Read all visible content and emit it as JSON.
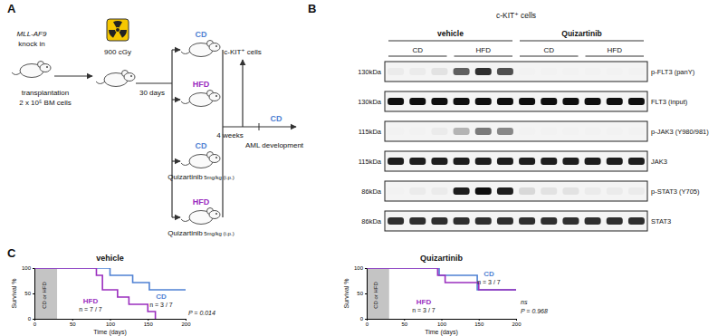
{
  "panel_a": {
    "label": "A",
    "donor": [
      "MLL-AF9",
      "knock in"
    ],
    "transplant": [
      "transplantation",
      "2 x 10⁵ BM cells"
    ],
    "irradiation": "900 cGy",
    "interval": "30 days",
    "groups": [
      {
        "diet": "CD",
        "color": "#4f81d3"
      },
      {
        "diet": "HFD",
        "color": "#9b2fbf"
      },
      {
        "diet": "CD",
        "color": "#4f81d3",
        "treatment": "Quizartinib",
        "dose": "5mg/kg (i.p.)"
      },
      {
        "diet": "HFD",
        "color": "#9b2fbf",
        "treatment": "Quizartinib",
        "dose": "5mg/kg (i.p.)"
      }
    ],
    "duration": "4 weeks",
    "harvest": "c-KIT⁺ cells",
    "post_diet": {
      "diet": "CD",
      "color": "#4f81d3"
    },
    "outcome": "AML development"
  },
  "panel_b": {
    "label": "B",
    "cell_type": "c-KIT⁺ cells",
    "treatments": [
      {
        "name": "vehicle",
        "diets": [
          "CD",
          "HFD"
        ]
      },
      {
        "name": "Quizartinib",
        "diets": [
          "CD",
          "HFD"
        ]
      }
    ],
    "rows": [
      {
        "mw": "130kDa",
        "antibody": "p-FLT3 (panY)",
        "intensities": [
          0.15,
          0.15,
          0.2,
          0.7,
          0.85,
          0.75,
          0.1,
          0.1,
          0.1,
          0.1,
          0.1,
          0.1
        ]
      },
      {
        "mw": "130kDa",
        "antibody": "FLT3 (input)",
        "intensities": [
          0.95,
          0.95,
          0.95,
          0.95,
          0.95,
          0.95,
          0.95,
          0.95,
          0.95,
          0.95,
          0.95,
          0.95
        ]
      },
      {
        "mw": "115kDa",
        "antibody": "p-JAK3 (Y980/981)",
        "intensities": [
          0.1,
          0.1,
          0.15,
          0.4,
          0.6,
          0.55,
          0.1,
          0.1,
          0.1,
          0.1,
          0.1,
          0.1
        ]
      },
      {
        "mw": "115kDa",
        "antibody": "JAK3",
        "intensities": [
          0.9,
          0.9,
          0.9,
          0.9,
          0.9,
          0.9,
          0.9,
          0.9,
          0.9,
          0.9,
          0.9,
          0.9
        ]
      },
      {
        "mw": "86kDa",
        "antibody": "p-STAT3 (Y705)",
        "intensities": [
          0.1,
          0.15,
          0.15,
          0.9,
          0.95,
          0.9,
          0.25,
          0.2,
          0.2,
          0.15,
          0.15,
          0.15
        ]
      },
      {
        "mw": "86kDa",
        "antibody": "STAT3",
        "intensities": [
          0.85,
          0.85,
          0.85,
          0.85,
          0.85,
          0.85,
          0.85,
          0.85,
          0.85,
          0.85,
          0.85,
          0.85
        ]
      }
    ]
  },
  "panel_c": {
    "label": "C"
  },
  "chart_data": [
    {
      "type": "line",
      "title": "vehicle",
      "x_label": "Time (days)",
      "y_label": "Survival %",
      "xlim": [
        0,
        200
      ],
      "xticks": [
        0,
        50,
        100,
        150,
        200
      ],
      "ylim": [
        0,
        100
      ],
      "yticks": [
        0,
        50,
        100
      ],
      "shaded_region": {
        "label": "CD or HFD",
        "x": [
          0,
          30
        ]
      },
      "series": [
        {
          "name": "CD",
          "color": "#4f81d3",
          "line_style": "step",
          "n_label": "n = 3 / 7",
          "x": [
            0,
            100,
            130,
            152,
            200
          ],
          "values": [
            100,
            85.7,
            71.4,
            57.1,
            57.1
          ]
        },
        {
          "name": "HFD",
          "color": "#9b2fbf",
          "line_style": "step",
          "n_label": "n = 7 / 7",
          "x": [
            0,
            82,
            90,
            110,
            125,
            150,
            160
          ],
          "values": [
            100,
            85.7,
            57.1,
            42.9,
            28.6,
            14.3,
            0
          ]
        }
      ],
      "annotations": [
        "P = 0.014"
      ]
    },
    {
      "type": "line",
      "title": "Quizartinib",
      "x_label": "Time (days)",
      "y_label": "Survival %",
      "xlim": [
        0,
        200
      ],
      "xticks": [
        0,
        50,
        100,
        150,
        200
      ],
      "ylim": [
        0,
        100
      ],
      "yticks": [
        0,
        50,
        100
      ],
      "shaded_region": {
        "label": "CD or HFD",
        "x": [
          0,
          30
        ]
      },
      "series": [
        {
          "name": "CD",
          "color": "#4f81d3",
          "line_style": "step",
          "n_label": "n = 3 / 7",
          "x": [
            0,
            97,
            148,
            200
          ],
          "values": [
            100,
            85.7,
            57.1,
            57.1
          ]
        },
        {
          "name": "HFD",
          "color": "#9b2fbf",
          "line_style": "step",
          "n_label": "n = 3 / 7",
          "x": [
            0,
            95,
            105,
            150,
            200
          ],
          "values": [
            100,
            85.7,
            71.4,
            57.1,
            57.1
          ]
        }
      ],
      "annotations": [
        "ns",
        "P = 0.968"
      ]
    }
  ]
}
